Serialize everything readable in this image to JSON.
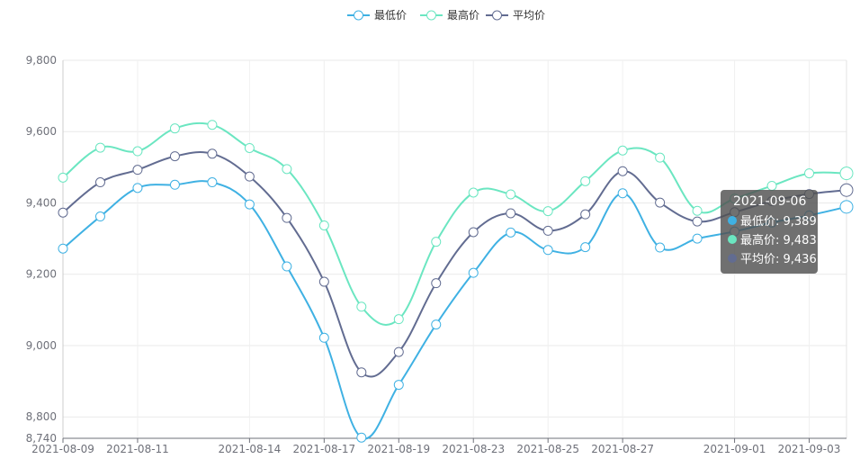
{
  "chart_data": {
    "type": "line",
    "title": "",
    "xlabel": "",
    "ylabel": "",
    "ylim": [
      8740,
      9800
    ],
    "yticks": [
      8740,
      8800,
      9000,
      9200,
      9400,
      9600,
      9800
    ],
    "ytick_labels": [
      "8,740",
      "8,800",
      "9,000",
      "9,200",
      "9,400",
      "9,600",
      "9,800"
    ],
    "x": [
      "2021-08-09",
      "2021-08-10",
      "2021-08-11",
      "2021-08-12",
      "2021-08-13",
      "2021-08-14",
      "2021-08-16",
      "2021-08-17",
      "2021-08-18",
      "2021-08-19",
      "2021-08-20",
      "2021-08-23",
      "2021-08-24",
      "2021-08-25",
      "2021-08-26",
      "2021-08-27",
      "2021-08-30",
      "2021-08-31",
      "2021-09-01",
      "2021-09-02",
      "2021-09-03",
      "2021-09-06"
    ],
    "xtick_labels": [
      "2021-08-09",
      "2021-08-11",
      "2021-08-14",
      "2021-08-17",
      "2021-08-19",
      "2021-08-23",
      "2021-08-25",
      "2021-08-27",
      "2021-09-01",
      "2021-09-03"
    ],
    "grid": true,
    "legend_position": "top-center",
    "smooth": true,
    "series": [
      {
        "name": "最低价",
        "color": "#3fb1e3",
        "values": [
          9272,
          9362,
          9442,
          9451,
          9458,
          9396,
          9222,
          9022,
          8742,
          8890,
          9059,
          9204,
          9317,
          9268,
          9276,
          9427,
          9275,
          9300,
          9320,
          9345,
          9365,
          9389
        ]
      },
      {
        "name": "最高价",
        "color": "#6be6c1",
        "values": [
          9471,
          9555,
          9545,
          9609,
          9619,
          9554,
          9495,
          9337,
          9109,
          9074,
          9291,
          9429,
          9424,
          9377,
          9461,
          9547,
          9527,
          9378,
          9412,
          9448,
          9483,
          9483
        ]
      },
      {
        "name": "平均价",
        "color": "#626c91",
        "values": [
          9373,
          9458,
          9493,
          9531,
          9538,
          9474,
          9358,
          9179,
          8925,
          8982,
          9175,
          9318,
          9371,
          9322,
          9368,
          9489,
          9401,
          9348,
          9374,
          9405,
          9425,
          9436
        ]
      }
    ]
  },
  "tooltip": {
    "title": "2021-09-06",
    "rows": [
      {
        "label": "最低价: 9,389",
        "color": "#3fb1e3"
      },
      {
        "label": "最高价: 9,483",
        "color": "#6be6c1"
      },
      {
        "label": "平均价: 9,436",
        "color": "#626c91"
      }
    ]
  }
}
